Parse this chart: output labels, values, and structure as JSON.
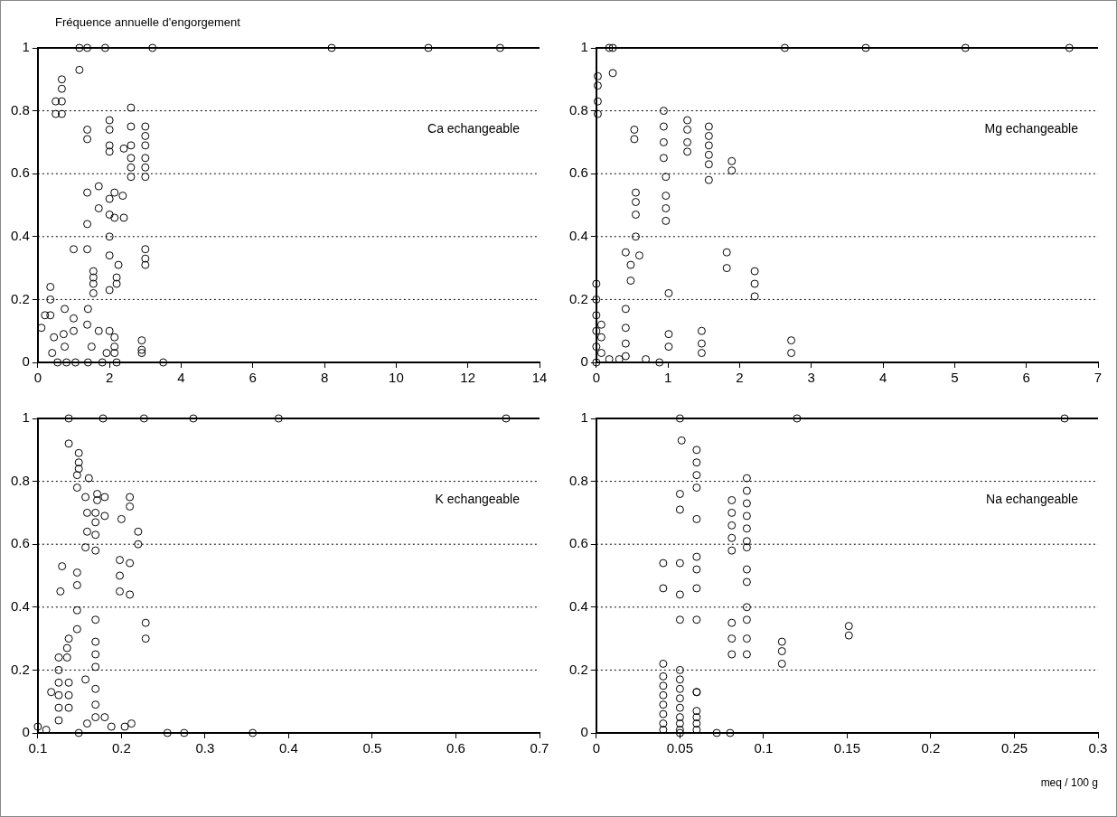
{
  "chart_data": [
    {
      "type": "scatter",
      "title": "Ca echangeable",
      "ylabel": "Fréquence annuelle d'engorgement",
      "xlim": [
        0,
        14
      ],
      "xticks": [
        0,
        2,
        4,
        6,
        8,
        10,
        12,
        14
      ],
      "ylim": [
        0,
        1
      ],
      "yticks": [
        0,
        0.2,
        0.4,
        0.6,
        0.8,
        1
      ],
      "grid": "y",
      "legend": false,
      "marker": "circle",
      "series": [
        {
          "color": "#000000",
          "x": [
            1.16,
            1.38,
            1.88,
            3.2,
            8.2,
            10.9,
            12.9,
            1.16,
            0.67,
            0.67,
            0.67,
            0.67,
            0.5,
            0.5,
            1.38,
            1.38,
            2.0,
            2.0,
            2.0,
            2.0,
            2.6,
            2.6,
            2.6,
            2.6,
            2.6,
            2.6,
            3.0,
            3.0,
            3.0,
            3.0,
            3.0,
            3.0,
            2.4,
            1.38,
            1.7,
            2.0,
            2.14,
            2.37,
            1.7,
            2.0,
            2.14,
            2.4,
            1.38,
            2.0,
            1.0,
            1.38,
            2.0,
            2.25,
            2.2,
            2.2,
            2.0,
            3.0,
            3.0,
            3.0,
            1.55,
            1.55,
            1.55,
            1.55,
            0.35,
            0.35,
            0.35,
            0.75,
            1.4,
            1.0,
            1.38,
            1.7,
            1.0,
            2.0,
            2.14,
            2.14,
            2.14,
            2.9,
            2.9,
            2.9,
            3.5,
            0.2,
            0.1,
            0.45,
            0.75,
            0.8,
            1.05,
            1.4,
            1.5,
            1.8,
            1.92,
            2.2,
            0.55,
            0.72,
            0.4
          ],
          "values": [
            1,
            1,
            1,
            1,
            1,
            1,
            1,
            0.93,
            0.9,
            0.87,
            0.83,
            0.79,
            0.83,
            0.79,
            0.74,
            0.71,
            0.77,
            0.74,
            0.69,
            0.67,
            0.81,
            0.75,
            0.69,
            0.65,
            0.62,
            0.59,
            0.75,
            0.72,
            0.69,
            0.65,
            0.62,
            0.59,
            0.68,
            0.54,
            0.56,
            0.52,
            0.54,
            0.53,
            0.49,
            0.47,
            0.46,
            0.46,
            0.44,
            0.4,
            0.36,
            0.36,
            0.34,
            0.31,
            0.27,
            0.25,
            0.23,
            0.36,
            0.33,
            0.31,
            0.29,
            0.27,
            0.25,
            0.22,
            0.24,
            0.2,
            0.15,
            0.17,
            0.17,
            0.14,
            0.12,
            0.1,
            0.1,
            0.1,
            0.08,
            0.05,
            0.03,
            0.07,
            0.04,
            0.03,
            0,
            0.15,
            0.11,
            0.08,
            0.05,
            0,
            0,
            0,
            0.05,
            0,
            0.03,
            0,
            0,
            0.09,
            0.03
          ]
        }
      ]
    },
    {
      "type": "scatter",
      "title": "Mg echangeable",
      "xlim": [
        0,
        7
      ],
      "xticks": [
        0,
        1,
        2,
        3,
        4,
        5,
        6,
        7
      ],
      "ylim": [
        0,
        1
      ],
      "yticks": [
        0,
        0.2,
        0.4,
        0.6,
        0.8,
        1
      ],
      "grid": "y",
      "legend": false,
      "marker": "circle",
      "series": [
        {
          "color": "#000000",
          "x": [
            0.18,
            0.23,
            2.63,
            3.76,
            5.15,
            6.6,
            0.23,
            0.02,
            0.02,
            0.02,
            0.02,
            0.53,
            0.53,
            0.94,
            0.94,
            0.94,
            0.94,
            0.97,
            0.97,
            0.97,
            0.97,
            1.27,
            1.27,
            1.27,
            1.27,
            1.57,
            1.57,
            1.57,
            1.57,
            1.57,
            1.57,
            1.89,
            1.89,
            0.55,
            0.55,
            0.55,
            0.55,
            0.6,
            0.41,
            0.48,
            0.48,
            1.82,
            1.82,
            2.21,
            2.21,
            2.21,
            1.01,
            0.41,
            0.41,
            1.01,
            1.01,
            1.47,
            1.47,
            1.47,
            2.72,
            2.72,
            0.41,
            0.41,
            0,
            0,
            0,
            0,
            0,
            0,
            0.07,
            0.07,
            0.07,
            0.18,
            0.32,
            0.69,
            0.88
          ],
          "values": [
            1,
            1,
            1,
            1,
            1,
            1,
            0.92,
            0.91,
            0.88,
            0.83,
            0.79,
            0.74,
            0.71,
            0.8,
            0.75,
            0.7,
            0.65,
            0.59,
            0.53,
            0.49,
            0.45,
            0.77,
            0.74,
            0.7,
            0.67,
            0.75,
            0.72,
            0.69,
            0.66,
            0.63,
            0.58,
            0.64,
            0.61,
            0.54,
            0.51,
            0.47,
            0.4,
            0.34,
            0.35,
            0.31,
            0.26,
            0.35,
            0.3,
            0.29,
            0.25,
            0.21,
            0.22,
            0.17,
            0.11,
            0.09,
            0.05,
            0.1,
            0.06,
            0.03,
            0.07,
            0.03,
            0.06,
            0.02,
            0.25,
            0.2,
            0.15,
            0.1,
            0.05,
            0,
            0.12,
            0.08,
            0.03,
            0.01,
            0.01,
            0.01,
            0
          ]
        }
      ]
    },
    {
      "type": "scatter",
      "title": "K echangeable",
      "xlim": [
        0.1,
        0.7
      ],
      "xticks": [
        0.1,
        0.2,
        0.3,
        0.4,
        0.5,
        0.6,
        0.7
      ],
      "ylim": [
        0,
        1
      ],
      "yticks": [
        0,
        0.2,
        0.4,
        0.6,
        0.8,
        1
      ],
      "grid": "y",
      "legend": false,
      "marker": "circle",
      "series": [
        {
          "color": "#000000",
          "x": [
            0.137,
            0.178,
            0.227,
            0.286,
            0.388,
            0.66,
            0.137,
            0.149,
            0.149,
            0.149,
            0.147,
            0.147,
            0.161,
            0.157,
            0.171,
            0.171,
            0.18,
            0.159,
            0.169,
            0.169,
            0.18,
            0.159,
            0.169,
            0.157,
            0.169,
            0.2,
            0.21,
            0.21,
            0.22,
            0.22,
            0.129,
            0.147,
            0.127,
            0.147,
            0.198,
            0.198,
            0.198,
            0.21,
            0.21,
            0.147,
            0.169,
            0.147,
            0.137,
            0.229,
            0.229,
            0.135,
            0.135,
            0.169,
            0.169,
            0.169,
            0.157,
            0.125,
            0.125,
            0.125,
            0.125,
            0.125,
            0.125,
            0.137,
            0.137,
            0.137,
            0.169,
            0.169,
            0.169,
            0.116,
            0.1,
            0.11,
            0.149,
            0.159,
            0.18,
            0.188,
            0.204,
            0.212,
            0.255,
            0.275,
            0.357
          ],
          "values": [
            1,
            1,
            1,
            1,
            1,
            1,
            0.92,
            0.89,
            0.86,
            0.84,
            0.82,
            0.78,
            0.81,
            0.75,
            0.76,
            0.74,
            0.75,
            0.7,
            0.7,
            0.67,
            0.69,
            0.64,
            0.63,
            0.59,
            0.58,
            0.68,
            0.75,
            0.72,
            0.64,
            0.6,
            0.53,
            0.51,
            0.45,
            0.47,
            0.55,
            0.5,
            0.45,
            0.54,
            0.44,
            0.39,
            0.36,
            0.33,
            0.3,
            0.35,
            0.3,
            0.27,
            0.24,
            0.29,
            0.25,
            0.21,
            0.17,
            0.24,
            0.2,
            0.16,
            0.12,
            0.08,
            0.04,
            0.16,
            0.12,
            0.08,
            0.14,
            0.09,
            0.05,
            0.13,
            0.02,
            0.01,
            0,
            0.03,
            0.05,
            0.02,
            0.02,
            0.03,
            0,
            0,
            0
          ]
        }
      ]
    },
    {
      "type": "scatter",
      "title": "Na echangeable",
      "xlabel": "meq / 100 g",
      "xlim": [
        0,
        0.3
      ],
      "xticks": [
        0,
        0.05,
        0.1,
        0.15,
        0.2,
        0.25,
        0.3
      ],
      "ylim": [
        0,
        1
      ],
      "yticks": [
        0,
        0.2,
        0.4,
        0.6,
        0.8,
        1
      ],
      "grid": "y",
      "legend": false,
      "marker": "circle",
      "series": [
        {
          "color": "#000000",
          "x": [
            0.05,
            0.12,
            0.28,
            0.051,
            0.06,
            0.06,
            0.06,
            0.06,
            0.09,
            0.09,
            0.09,
            0.09,
            0.09,
            0.09,
            0.09,
            0.081,
            0.081,
            0.081,
            0.081,
            0.081,
            0.05,
            0.05,
            0.06,
            0.04,
            0.05,
            0.06,
            0.06,
            0.06,
            0.09,
            0.09,
            0.04,
            0.05,
            0.05,
            0.06,
            0.09,
            0.09,
            0.09,
            0.09,
            0.081,
            0.081,
            0.081,
            0.111,
            0.111,
            0.111,
            0.151,
            0.151,
            0.04,
            0.04,
            0.04,
            0.04,
            0.04,
            0.04,
            0.04,
            0.05,
            0.05,
            0.05,
            0.05,
            0.05,
            0.05,
            0.05,
            0.05,
            0.05,
            0.06,
            0.06,
            0.06,
            0.06,
            0.06,
            0.072,
            0.08,
            0.04,
            0.06
          ],
          "values": [
            1,
            1,
            1,
            0.93,
            0.9,
            0.86,
            0.82,
            0.78,
            0.81,
            0.77,
            0.73,
            0.69,
            0.65,
            0.61,
            0.59,
            0.74,
            0.7,
            0.66,
            0.62,
            0.58,
            0.76,
            0.71,
            0.68,
            0.54,
            0.54,
            0.56,
            0.52,
            0.46,
            0.52,
            0.48,
            0.46,
            0.44,
            0.36,
            0.36,
            0.4,
            0.36,
            0.3,
            0.25,
            0.35,
            0.3,
            0.25,
            0.29,
            0.26,
            0.22,
            0.34,
            0.31,
            0.18,
            0.15,
            0.12,
            0.09,
            0.06,
            0.03,
            0.01,
            0.2,
            0.17,
            0.14,
            0.11,
            0.08,
            0.05,
            0.03,
            0.01,
            0,
            0.13,
            0.07,
            0.05,
            0.03,
            0.01,
            0,
            0,
            0.22,
            0.13
          ]
        }
      ]
    }
  ]
}
